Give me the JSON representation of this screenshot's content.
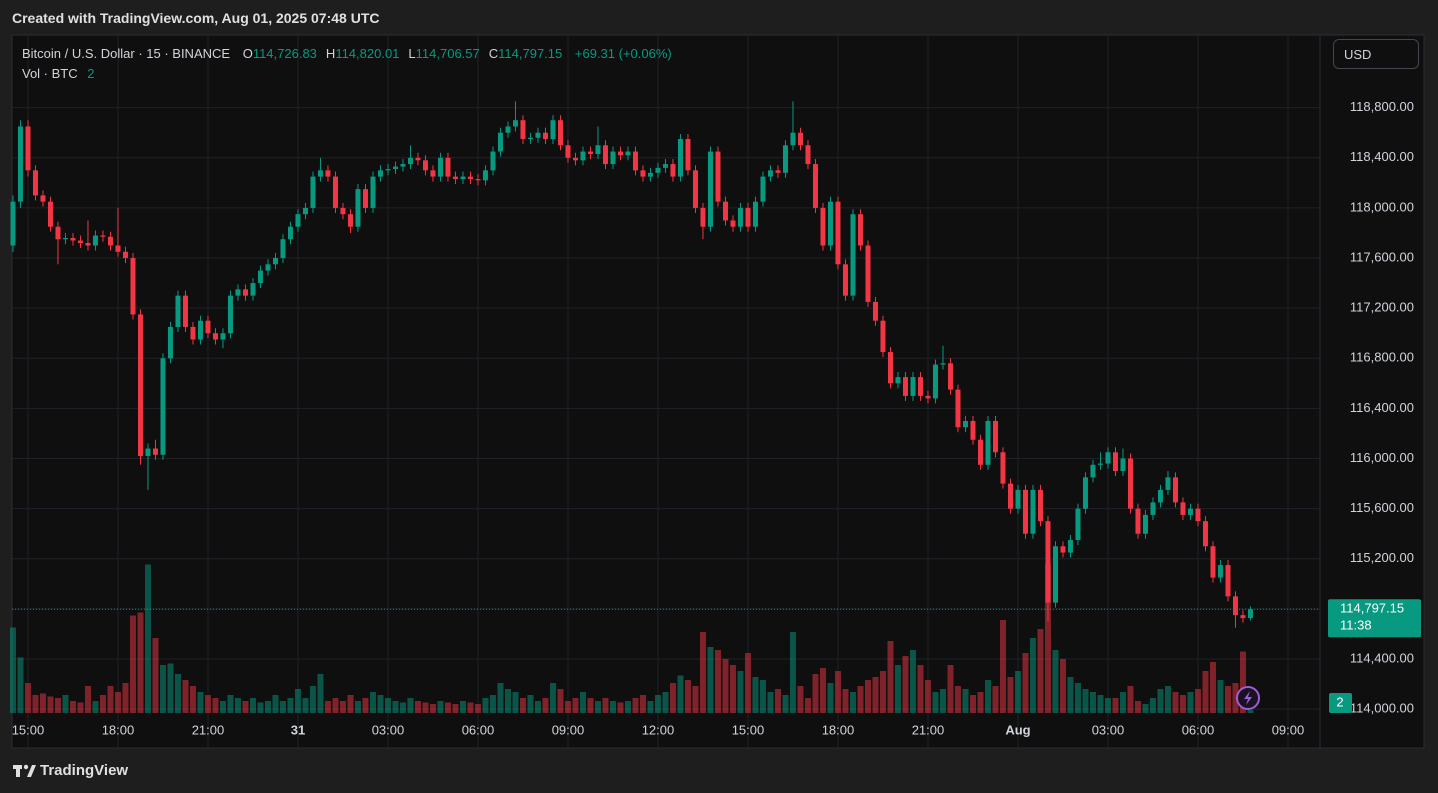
{
  "created": "Created with TradingView.com, Aug 01, 2025 07:48 UTC",
  "footer": "TradingView",
  "chart_data": {
    "type": "candlestick",
    "symbol": "Bitcoin / U.S. Dollar · 15 · BINANCE",
    "ohlc_letters": [
      "O",
      "H",
      "L",
      "C"
    ],
    "ohlc_labels": [
      "114,726.83",
      "114,820.01",
      "114,706.57",
      "114,797.15"
    ],
    "change_label": "+69.31 (+0.06%)",
    "volume_title": "Vol · BTC",
    "currency": "USD",
    "countdown": "11:38",
    "up_color": "#089981",
    "down_color": "#f23645",
    "grid": true,
    "xlim": [
      -0.13,
      174.27
    ],
    "ylim": [
      113690,
      119380
    ],
    "vlim": [
      0,
      100
    ],
    "xticks": [
      {
        "value": 2,
        "label": "15:00"
      },
      {
        "value": 14,
        "label": "18:00"
      },
      {
        "value": 26,
        "label": "21:00"
      },
      {
        "value": 38,
        "label": "31"
      },
      {
        "value": 50,
        "label": "03:00"
      },
      {
        "value": 62,
        "label": "06:00"
      },
      {
        "value": 74,
        "label": "09:00"
      },
      {
        "value": 86,
        "label": "12:00"
      },
      {
        "value": 98,
        "label": "15:00"
      },
      {
        "value": 110,
        "label": "18:00"
      },
      {
        "value": 122,
        "label": "21:00"
      },
      {
        "value": 134,
        "label": "Aug"
      },
      {
        "value": 146,
        "label": "03:00"
      },
      {
        "value": 158,
        "label": "06:00"
      },
      {
        "value": 170,
        "label": "09:00"
      }
    ],
    "yticks": [
      {
        "value": 114000,
        "label": "114,000.00"
      },
      {
        "value": 114400,
        "label": "114,400.00"
      },
      {
        "value": 114800,
        "label": "114,800.00"
      },
      {
        "value": 115200,
        "label": "115,200.00"
      },
      {
        "value": 115600,
        "label": "115,600.00"
      },
      {
        "value": 116000,
        "label": "116,000.00"
      },
      {
        "value": 116400,
        "label": "116,400.00"
      },
      {
        "value": 116800,
        "label": "116,800.00"
      },
      {
        "value": 117200,
        "label": "117,200.00"
      },
      {
        "value": 117600,
        "label": "117,600.00"
      },
      {
        "value": 118000,
        "label": "118,000.00"
      },
      {
        "value": 118400,
        "label": "118,400.00"
      },
      {
        "value": 118800,
        "label": "118,800.00"
      }
    ],
    "candles": [
      [
        117700,
        118100,
        117650,
        118050
      ],
      [
        118050,
        118700,
        118000,
        118650
      ],
      [
        118650,
        118700,
        118250,
        118300
      ],
      [
        118300,
        118340,
        118060,
        118100
      ],
      [
        118100,
        118140,
        118010,
        118050
      ],
      [
        118050,
        118090,
        117810,
        117850
      ],
      [
        117850,
        117890,
        117550,
        117750
      ],
      [
        117750,
        117800,
        117710,
        117760
      ],
      [
        117760,
        117800,
        117700,
        117740
      ],
      [
        117740,
        117780,
        117680,
        117720
      ],
      [
        117720,
        117900,
        117660,
        117700
      ],
      [
        117700,
        117820,
        117660,
        117780
      ],
      [
        117780,
        117820,
        117730,
        117770
      ],
      [
        117770,
        117810,
        117660,
        117700
      ],
      [
        117700,
        118000,
        117610,
        117650
      ],
      [
        117650,
        117690,
        117560,
        117600
      ],
      [
        117600,
        117640,
        117110,
        117150
      ],
      [
        117150,
        117190,
        115950,
        116020
      ],
      [
        116020,
        116120,
        115750,
        116080
      ],
      [
        116080,
        116150,
        115990,
        116030
      ],
      [
        116030,
        116840,
        115990,
        116800
      ],
      [
        116800,
        117090,
        116760,
        117050
      ],
      [
        117050,
        117340,
        117010,
        117300
      ],
      [
        117300,
        117340,
        117010,
        117050
      ],
      [
        117050,
        117090,
        116910,
        116950
      ],
      [
        116950,
        117140,
        116910,
        117100
      ],
      [
        117100,
        117140,
        116960,
        117000
      ],
      [
        117000,
        117040,
        116910,
        116950
      ],
      [
        116950,
        117040,
        116880,
        117000
      ],
      [
        117000,
        117340,
        116960,
        117300
      ],
      [
        117300,
        117390,
        117260,
        117350
      ],
      [
        117350,
        117390,
        117260,
        117300
      ],
      [
        117300,
        117440,
        117260,
        117400
      ],
      [
        117400,
        117540,
        117360,
        117500
      ],
      [
        117500,
        117590,
        117460,
        117550
      ],
      [
        117550,
        117640,
        117510,
        117600
      ],
      [
        117600,
        117790,
        117560,
        117750
      ],
      [
        117750,
        117890,
        117710,
        117850
      ],
      [
        117850,
        117990,
        117810,
        117950
      ],
      [
        117950,
        118040,
        117910,
        118000
      ],
      [
        118000,
        118290,
        117960,
        118250
      ],
      [
        118250,
        118400,
        118210,
        118300
      ],
      [
        118300,
        118340,
        118210,
        118250
      ],
      [
        118250,
        118290,
        117960,
        118000
      ],
      [
        118000,
        118040,
        117910,
        117950
      ],
      [
        117950,
        117990,
        117800,
        117850
      ],
      [
        117850,
        118190,
        117810,
        118150
      ],
      [
        118150,
        118190,
        117960,
        118000
      ],
      [
        118000,
        118290,
        117960,
        118250
      ],
      [
        118250,
        118340,
        118210,
        118300
      ],
      [
        118300,
        118350,
        118260,
        118310
      ],
      [
        118310,
        118370,
        118270,
        118330
      ],
      [
        118330,
        118390,
        118290,
        118350
      ],
      [
        118350,
        118500,
        118310,
        118400
      ],
      [
        118400,
        118440,
        118340,
        118380
      ],
      [
        118380,
        118420,
        118260,
        118300
      ],
      [
        118300,
        118340,
        118210,
        118250
      ],
      [
        118250,
        118440,
        118210,
        118400
      ],
      [
        118400,
        118440,
        118210,
        118250
      ],
      [
        118250,
        118290,
        118190,
        118230
      ],
      [
        118230,
        118290,
        118190,
        118250
      ],
      [
        118250,
        118290,
        118190,
        118230
      ],
      [
        118230,
        118270,
        118180,
        118220
      ],
      [
        118220,
        118340,
        118180,
        118300
      ],
      [
        118300,
        118490,
        118260,
        118450
      ],
      [
        118450,
        118640,
        118410,
        118600
      ],
      [
        118600,
        118690,
        118560,
        118650
      ],
      [
        118650,
        118850,
        118610,
        118700
      ],
      [
        118700,
        118740,
        118510,
        118550
      ],
      [
        118550,
        118600,
        118510,
        118560
      ],
      [
        118560,
        118640,
        118520,
        118600
      ],
      [
        118600,
        118640,
        118510,
        118550
      ],
      [
        118550,
        118740,
        118510,
        118700
      ],
      [
        118700,
        118740,
        118460,
        118500
      ],
      [
        118500,
        118540,
        118360,
        118400
      ],
      [
        118400,
        118440,
        118340,
        118380
      ],
      [
        118380,
        118490,
        118340,
        118450
      ],
      [
        118450,
        118490,
        118390,
        118430
      ],
      [
        118430,
        118650,
        118390,
        118500
      ],
      [
        118500,
        118540,
        118310,
        118350
      ],
      [
        118350,
        118490,
        118310,
        118450
      ],
      [
        118450,
        118490,
        118380,
        118420
      ],
      [
        118420,
        118490,
        118380,
        118450
      ],
      [
        118450,
        118490,
        118260,
        118300
      ],
      [
        118300,
        118340,
        118210,
        118250
      ],
      [
        118250,
        118320,
        118210,
        118280
      ],
      [
        118280,
        118360,
        118240,
        118320
      ],
      [
        118320,
        118390,
        118280,
        118350
      ],
      [
        118350,
        118390,
        118210,
        118250
      ],
      [
        118250,
        118590,
        118210,
        118550
      ],
      [
        118550,
        118590,
        118260,
        118300
      ],
      [
        118300,
        118340,
        117960,
        118000
      ],
      [
        118000,
        118040,
        117750,
        117850
      ],
      [
        117850,
        118490,
        117810,
        118450
      ],
      [
        118450,
        118490,
        118010,
        118050
      ],
      [
        118050,
        118090,
        117860,
        117900
      ],
      [
        117900,
        117940,
        117810,
        117850
      ],
      [
        117850,
        118040,
        117810,
        118000
      ],
      [
        118000,
        118040,
        117810,
        117850
      ],
      [
        117850,
        118090,
        117810,
        118050
      ],
      [
        118050,
        118290,
        118010,
        118250
      ],
      [
        118250,
        118340,
        118210,
        118300
      ],
      [
        118300,
        118340,
        118240,
        118280
      ],
      [
        118280,
        118540,
        118240,
        118500
      ],
      [
        118500,
        118850,
        118460,
        118600
      ],
      [
        118600,
        118640,
        118460,
        118500
      ],
      [
        118500,
        118540,
        118310,
        118350
      ],
      [
        118350,
        118390,
        117960,
        118000
      ],
      [
        118000,
        118040,
        117660,
        117700
      ],
      [
        117700,
        118090,
        117660,
        118050
      ],
      [
        118050,
        118090,
        117510,
        117550
      ],
      [
        117550,
        117590,
        117260,
        117300
      ],
      [
        117300,
        117990,
        117260,
        117950
      ],
      [
        117950,
        117990,
        117660,
        117700
      ],
      [
        117700,
        117740,
        117210,
        117250
      ],
      [
        117250,
        117290,
        117060,
        117100
      ],
      [
        117100,
        117140,
        116810,
        116850
      ],
      [
        116850,
        116890,
        116560,
        116600
      ],
      [
        116600,
        116690,
        116560,
        116650
      ],
      [
        116650,
        116690,
        116460,
        116500
      ],
      [
        116500,
        116690,
        116460,
        116650
      ],
      [
        116650,
        116690,
        116460,
        116500
      ],
      [
        116500,
        116540,
        116440,
        116480
      ],
      [
        116480,
        116790,
        116440,
        116750
      ],
      [
        116750,
        116900,
        116710,
        116760
      ],
      [
        116760,
        116800,
        116510,
        116550
      ],
      [
        116550,
        116590,
        116210,
        116250
      ],
      [
        116250,
        116340,
        116210,
        116300
      ],
      [
        116300,
        116340,
        116110,
        116150
      ],
      [
        116150,
        116190,
        115910,
        115950
      ],
      [
        115950,
        116340,
        115910,
        116300
      ],
      [
        116300,
        116340,
        116010,
        116050
      ],
      [
        116050,
        116090,
        115760,
        115800
      ],
      [
        115800,
        115840,
        115560,
        115600
      ],
      [
        115600,
        115790,
        115560,
        115750
      ],
      [
        115750,
        115790,
        115360,
        115400
      ],
      [
        115400,
        115790,
        115360,
        115750
      ],
      [
        115750,
        115790,
        115460,
        115500
      ],
      [
        115500,
        115540,
        114700,
        114850
      ],
      [
        114850,
        115340,
        114810,
        115300
      ],
      [
        115300,
        115340,
        115210,
        115250
      ],
      [
        115250,
        115390,
        115210,
        115350
      ],
      [
        115350,
        115640,
        115310,
        115600
      ],
      [
        115600,
        115890,
        115560,
        115850
      ],
      [
        115850,
        115990,
        115810,
        115950
      ],
      [
        115950,
        116050,
        115910,
        115960
      ],
      [
        115960,
        116090,
        115920,
        116050
      ],
      [
        116050,
        116090,
        115860,
        115900
      ],
      [
        115900,
        116080,
        115860,
        116000
      ],
      [
        116000,
        116040,
        115560,
        115600
      ],
      [
        115600,
        115640,
        115360,
        115400
      ],
      [
        115400,
        115590,
        115360,
        115550
      ],
      [
        115550,
        115690,
        115510,
        115650
      ],
      [
        115650,
        115790,
        115610,
        115750
      ],
      [
        115750,
        115900,
        115710,
        115850
      ],
      [
        115850,
        115890,
        115610,
        115650
      ],
      [
        115650,
        115690,
        115510,
        115550
      ],
      [
        115550,
        115640,
        115510,
        115600
      ],
      [
        115600,
        115640,
        115460,
        115500
      ],
      [
        115500,
        115540,
        115260,
        115300
      ],
      [
        115300,
        115340,
        115010,
        115050
      ],
      [
        115050,
        115190,
        115010,
        115150
      ],
      [
        115150,
        115190,
        114860,
        114900
      ],
      [
        114900,
        114940,
        114650,
        114750
      ],
      [
        114750,
        114790,
        114690,
        114726.83
      ],
      [
        114726.83,
        114820.01,
        114706.57,
        114797.15
      ]
    ],
    "volumes": [
      57,
      37,
      20,
      12,
      13,
      11,
      10,
      12,
      8,
      7,
      18,
      8,
      12,
      18,
      14,
      20,
      65,
      67,
      99,
      50,
      32,
      33,
      26,
      22,
      18,
      14,
      12,
      10,
      8,
      12,
      10,
      8,
      10,
      7,
      8,
      12,
      8,
      10,
      16,
      10,
      18,
      26,
      8,
      10,
      8,
      12,
      8,
      10,
      14,
      12,
      10,
      8,
      7,
      10,
      8,
      7,
      6,
      8,
      7,
      6,
      8,
      7,
      6,
      10,
      12,
      20,
      16,
      14,
      10,
      12,
      8,
      10,
      20,
      16,
      8,
      10,
      14,
      10,
      8,
      10,
      8,
      7,
      8,
      10,
      12,
      8,
      12,
      14,
      20,
      25,
      22,
      18,
      54,
      44,
      42,
      36,
      32,
      28,
      40,
      24,
      22,
      14,
      16,
      12,
      54,
      18,
      10,
      26,
      30,
      20,
      28,
      16,
      14,
      18,
      22,
      24,
      28,
      48,
      32,
      38,
      42,
      32,
      22,
      14,
      16,
      32,
      18,
      16,
      12,
      14,
      22,
      18,
      62,
      24,
      28,
      40,
      50,
      56,
      99,
      42,
      36,
      24,
      20,
      16,
      14,
      12,
      10,
      10,
      14,
      18,
      8,
      6,
      10,
      16,
      18,
      14,
      12,
      14,
      16,
      28,
      34,
      22,
      18,
      20,
      41,
      2
    ]
  }
}
